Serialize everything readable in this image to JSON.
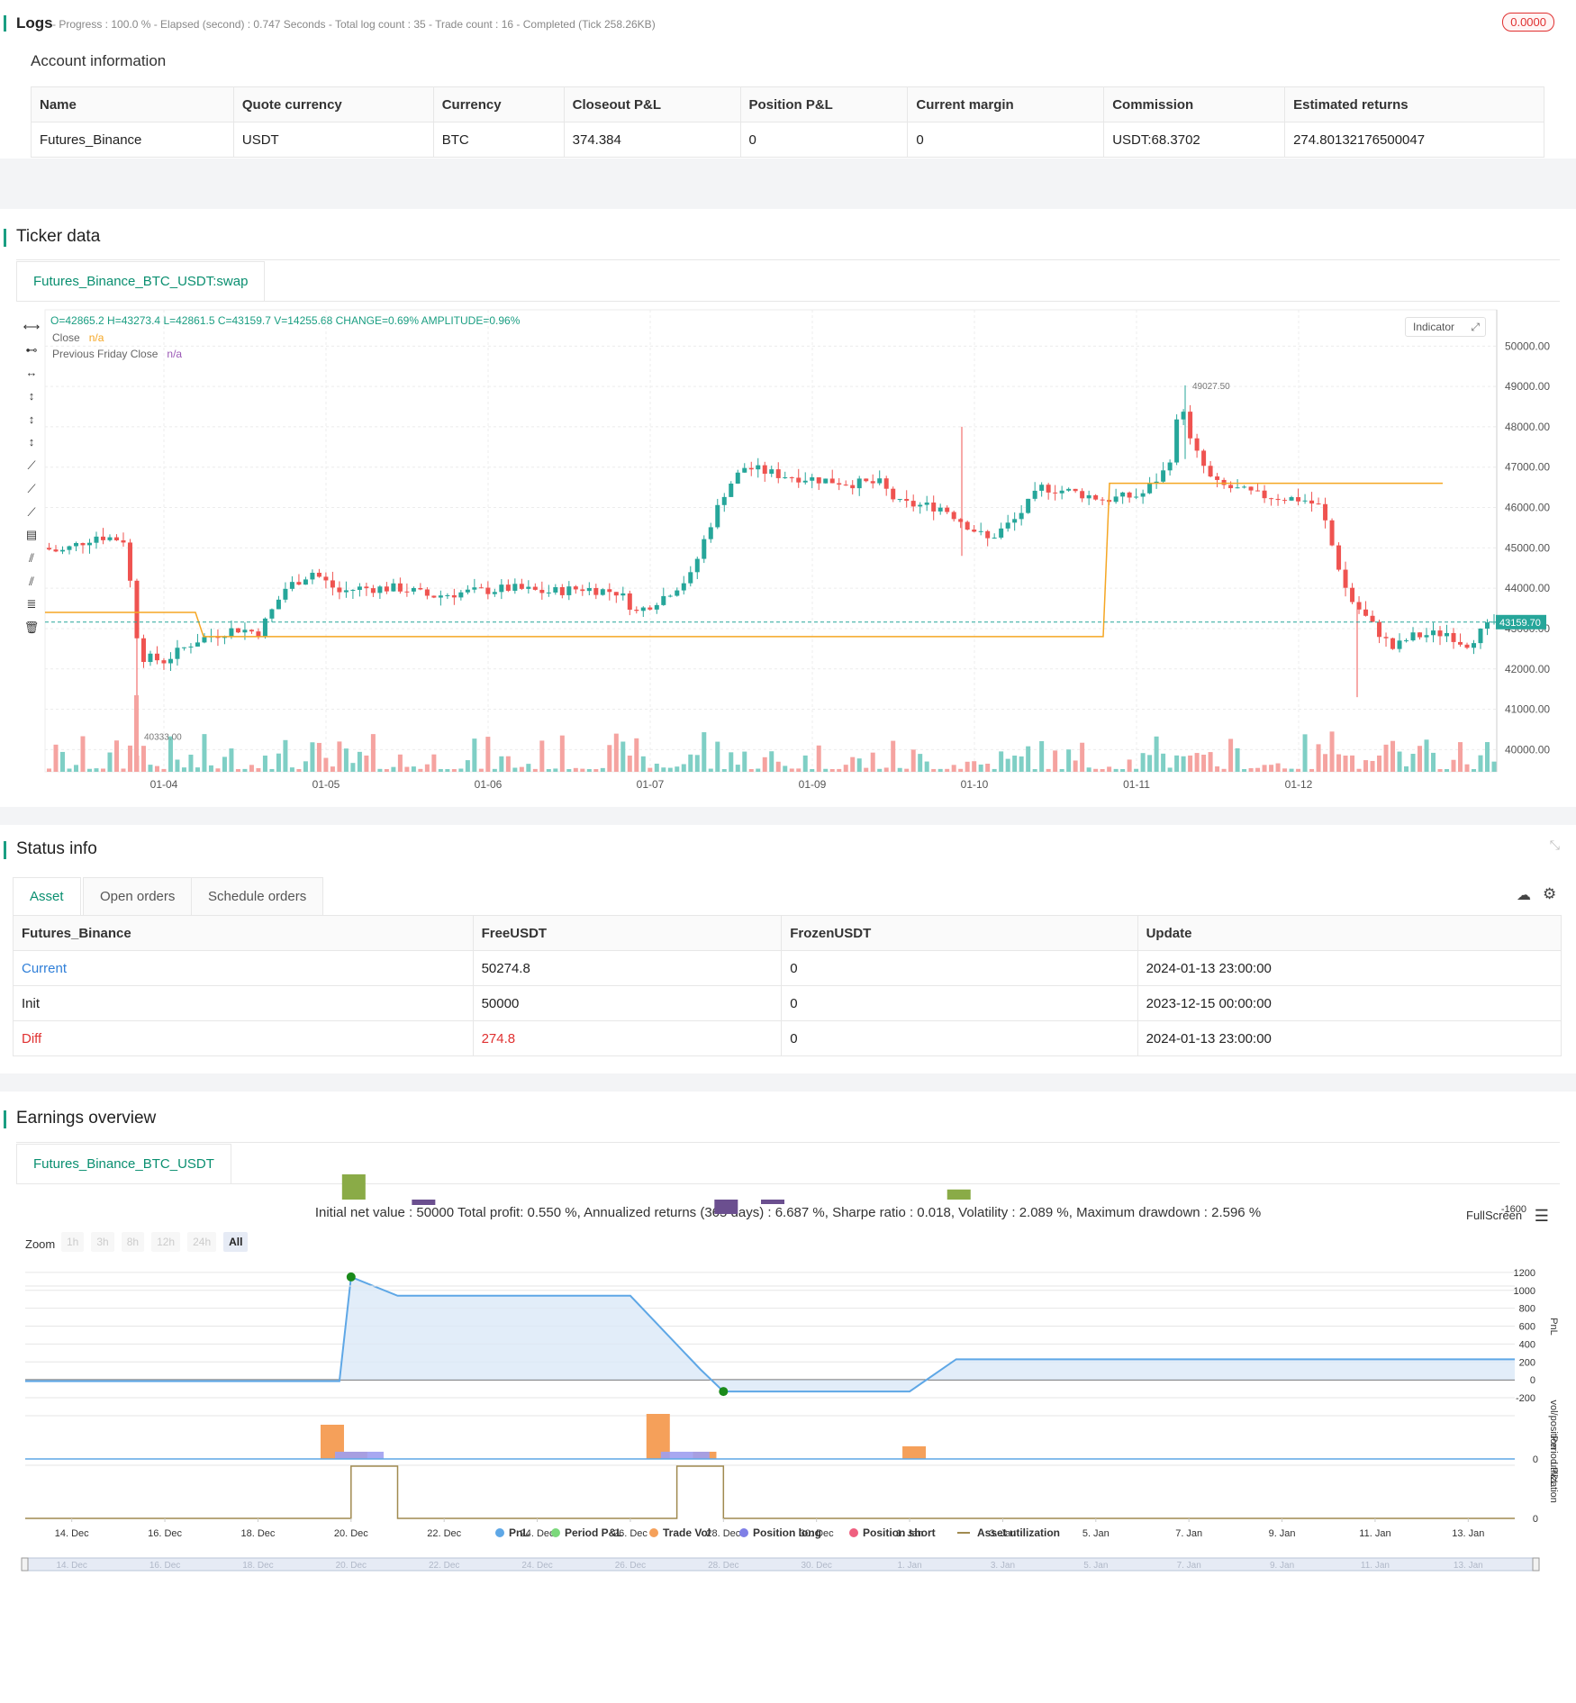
{
  "logs": {
    "title": "Logs",
    "status": "- Progress : 100.0 % - Elapsed (second) : 0.747  Seconds - Total log count : 35 - Trade count : 16 - Completed (Tick 258.26KB)",
    "badge": "0.0000"
  },
  "account": {
    "title": "Account information",
    "headers": [
      "Name",
      "Quote currency",
      "Currency",
      "Closeout P&L",
      "Position P&L",
      "Current margin",
      "Commission",
      "Estimated returns"
    ],
    "row": [
      "Futures_Binance",
      "USDT",
      "BTC",
      "374.384",
      "0",
      "0",
      "USDT:68.3702",
      "274.80132176500047"
    ]
  },
  "ticker": {
    "title": "Ticker data",
    "tab": "Futures_Binance_BTC_USDT:swap",
    "ohlc": "O=42865.2 H=43273.4 L=42861.5 C=43159.7 V=14255.68 CHANGE=0.69% AMPLITUDE=0.96%",
    "legend": [
      {
        "name": "Close",
        "value": "n/a",
        "color": "#f5a623"
      },
      {
        "name": "Previous Friday Close",
        "value": "n/a",
        "color": "#9b59b6"
      }
    ],
    "indicator_btn": "Indicator",
    "price_label": "43159.70",
    "high_label": "49027.50",
    "low_label": "40333.00",
    "x_labels": [
      "01-04",
      "01-05",
      "01-06",
      "01-07",
      "01-09",
      "01-10",
      "01-11",
      "01-12"
    ],
    "y_labels": [
      "50000.00",
      "49000.00",
      "48000.00",
      "47000.00",
      "46000.00",
      "45000.00",
      "44000.00",
      "43000.00",
      "42000.00",
      "41000.00",
      "40000.00"
    ]
  },
  "status": {
    "title": "Status info",
    "tabs": [
      "Asset",
      "Open orders",
      "Schedule orders"
    ],
    "headers": [
      "Futures_Binance",
      "FreeUSDT",
      "FrozenUSDT",
      "Update"
    ],
    "rows": [
      [
        "Current",
        "50274.8",
        "0",
        "2024-01-13 23:00:00"
      ],
      [
        "Init",
        "50000",
        "0",
        "2023-12-15 00:00:00"
      ],
      [
        "Diff",
        "274.8",
        "0",
        "2024-01-13 23:00:00"
      ]
    ]
  },
  "earnings": {
    "title": "Earnings overview",
    "tab": "Futures_Binance_BTC_USDT",
    "summary": "Initial net value : 50000 Total profit: 0.550 %, Annualized returns (365 days) : 6.687 %, Sharpe ratio : 0.018, Volatility : 2.089 %, Maximum drawdown : 2.596 %",
    "fullscreen": "FullScreen",
    "zoom_label": "Zoom",
    "zoom_buttons": [
      "1h",
      "3h",
      "8h",
      "12h",
      "24h",
      "All"
    ],
    "pnl_axis": [
      "1200",
      "1000",
      "800",
      "600",
      "400",
      "200",
      "0",
      "-200"
    ],
    "period_axis": "-1600",
    "vol_axis": "0",
    "util_axis": "0",
    "axis_titles": [
      "PnL",
      "Period P&L",
      "vol/position",
      "utilization"
    ],
    "x_labels": [
      "14. Dec",
      "16. Dec",
      "18. Dec",
      "20. Dec",
      "22. Dec",
      "24. Dec",
      "26. Dec",
      "28. Dec",
      "30. Dec",
      "1. Jan",
      "3. Jan",
      "5. Jan",
      "7. Jan",
      "9. Jan",
      "11. Jan",
      "13. Jan"
    ],
    "legend": [
      {
        "name": "PnL",
        "color": "#5ea7e6"
      },
      {
        "name": "Period P&L",
        "color": "#7bd87b"
      },
      {
        "name": "Trade Vol",
        "color": "#f5a05a"
      },
      {
        "name": "Position long",
        "color": "#7f7fe6"
      },
      {
        "name": "Position short",
        "color": "#ef5f7f"
      },
      {
        "name": "Asset utilization",
        "color": "#a08a50"
      }
    ]
  }
}
